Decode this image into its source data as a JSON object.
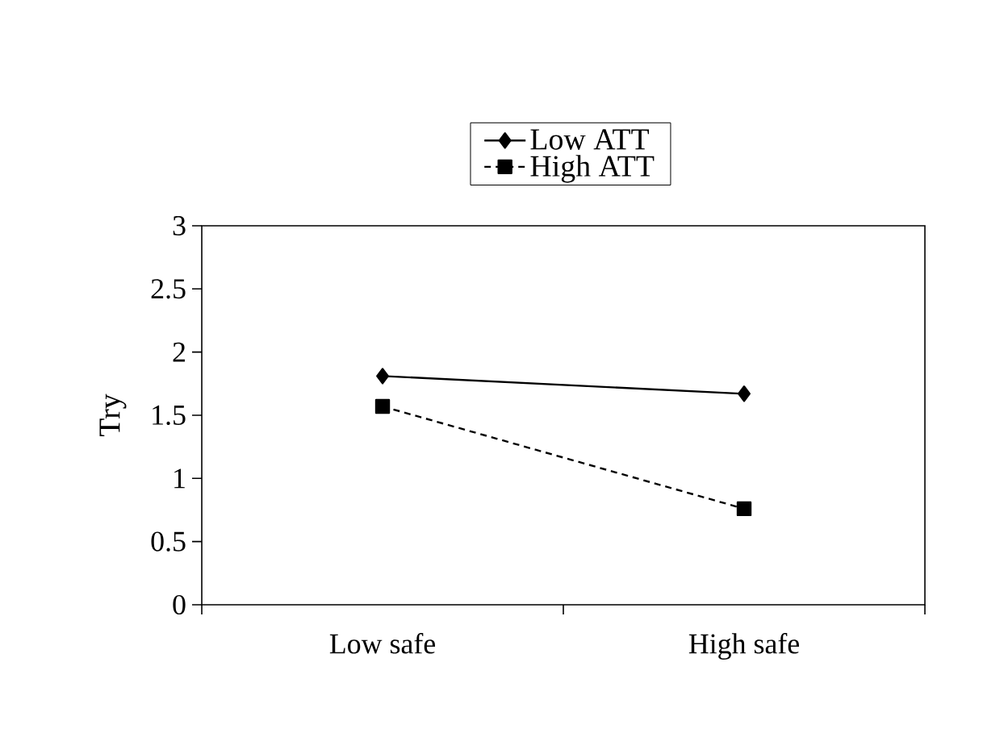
{
  "chart_data": {
    "type": "line",
    "ylabel": "Try",
    "categories": [
      "Low safe",
      "High safe"
    ],
    "series": [
      {
        "name": "Low ATT",
        "color": "#000000",
        "values": [
          1.81,
          1.67
        ],
        "marker": "diamond",
        "line_style": "solid"
      },
      {
        "name": "High ATT",
        "color": "#000000",
        "values": [
          1.57,
          0.76
        ],
        "marker": "square",
        "line_style": "dashed"
      }
    ],
    "ylim": [
      0,
      3
    ],
    "yticks": [
      0,
      0.5,
      1,
      1.5,
      2,
      2.5,
      3
    ],
    "grid": false,
    "legend": "top"
  }
}
